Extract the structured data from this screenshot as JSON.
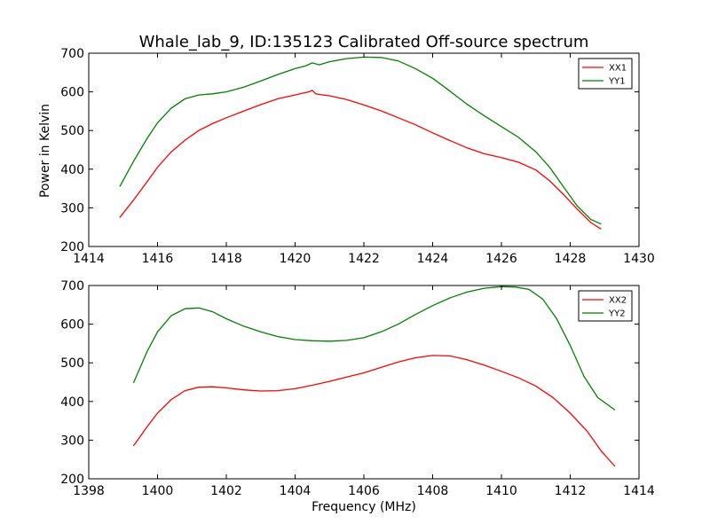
{
  "figure": {
    "title": "Whale_lab_9, ID:135123 Calibrated Off-source spectrum",
    "ylabel": "Power in Kelvin",
    "xlabel": "Frequency (MHz)"
  },
  "chart_data": [
    {
      "type": "line",
      "title": "Whale_lab_9, ID:135123 Calibrated Off-source spectrum",
      "ylabel": "Power in Kelvin",
      "xlabel": "",
      "xlim": [
        1414,
        1430
      ],
      "ylim": [
        200,
        700
      ],
      "xticks": [
        1414,
        1416,
        1418,
        1420,
        1422,
        1424,
        1426,
        1428,
        1430
      ],
      "yticks": [
        200,
        300,
        400,
        500,
        600,
        700
      ],
      "legend": "top-right",
      "series": [
        {
          "name": "XX1",
          "color": "#ff0000",
          "x": [
            1414.9,
            1415.3,
            1415.7,
            1416.0,
            1416.4,
            1416.8,
            1417.2,
            1417.6,
            1418.0,
            1418.5,
            1419.0,
            1419.5,
            1420.0,
            1420.2,
            1420.4,
            1420.5,
            1420.6,
            1420.8,
            1421.0,
            1421.5,
            1422.0,
            1422.5,
            1423.0,
            1423.5,
            1424.0,
            1424.5,
            1425.0,
            1425.5,
            1426.0,
            1426.5,
            1427.0,
            1427.4,
            1427.8,
            1428.2,
            1428.6,
            1428.9
          ],
          "y": [
            275,
            320,
            368,
            405,
            445,
            475,
            500,
            518,
            533,
            550,
            567,
            582,
            592,
            596,
            600,
            604,
            595,
            592,
            590,
            580,
            566,
            551,
            533,
            515,
            494,
            474,
            455,
            440,
            430,
            418,
            398,
            370,
            335,
            297,
            262,
            245
          ]
        },
        {
          "name": "YY1",
          "color": "#008000",
          "x": [
            1414.9,
            1415.3,
            1415.7,
            1416.0,
            1416.4,
            1416.8,
            1417.2,
            1417.6,
            1418.0,
            1418.5,
            1419.0,
            1419.5,
            1420.0,
            1420.3,
            1420.5,
            1420.7,
            1421.0,
            1421.5,
            1422.0,
            1422.5,
            1423.0,
            1423.5,
            1424.0,
            1424.5,
            1425.0,
            1425.5,
            1426.0,
            1426.5,
            1427.0,
            1427.4,
            1427.8,
            1428.2,
            1428.6,
            1428.9
          ],
          "y": [
            355,
            420,
            480,
            520,
            558,
            582,
            592,
            595,
            600,
            612,
            628,
            645,
            660,
            667,
            675,
            670,
            678,
            686,
            690,
            689,
            680,
            660,
            635,
            602,
            568,
            538,
            510,
            482,
            445,
            405,
            355,
            305,
            270,
            258
          ]
        }
      ]
    },
    {
      "type": "line",
      "title": "",
      "ylabel": "",
      "xlabel": "Frequency (MHz)",
      "xlim": [
        1398,
        1414
      ],
      "ylim": [
        200,
        700
      ],
      "xticks": [
        1398,
        1400,
        1402,
        1404,
        1406,
        1408,
        1410,
        1412,
        1414
      ],
      "yticks": [
        200,
        300,
        400,
        500,
        600,
        700
      ],
      "legend": "top-right",
      "series": [
        {
          "name": "XX2",
          "color": "#ff0000",
          "x": [
            1399.3,
            1399.7,
            1400.0,
            1400.4,
            1400.8,
            1401.2,
            1401.6,
            1402.0,
            1402.5,
            1403.0,
            1403.5,
            1404.0,
            1404.5,
            1405.0,
            1405.5,
            1406.0,
            1406.5,
            1407.0,
            1407.5,
            1408.0,
            1408.5,
            1409.0,
            1409.5,
            1410.0,
            1410.5,
            1411.0,
            1411.5,
            1412.0,
            1412.5,
            1412.9,
            1413.3
          ],
          "y": [
            285,
            335,
            370,
            405,
            428,
            437,
            438,
            435,
            430,
            427,
            428,
            433,
            442,
            452,
            463,
            474,
            488,
            502,
            513,
            519,
            518,
            508,
            494,
            478,
            461,
            440,
            410,
            370,
            322,
            272,
            232
          ]
        },
        {
          "name": "YY2",
          "color": "#008000",
          "x": [
            1399.3,
            1399.7,
            1400.0,
            1400.4,
            1400.8,
            1401.2,
            1401.6,
            1402.0,
            1402.5,
            1403.0,
            1403.5,
            1404.0,
            1404.5,
            1405.0,
            1405.5,
            1406.0,
            1406.5,
            1407.0,
            1407.5,
            1408.0,
            1408.5,
            1409.0,
            1409.5,
            1410.0,
            1410.4,
            1410.8,
            1411.2,
            1411.6,
            1412.0,
            1412.4,
            1412.8,
            1413.3
          ],
          "y": [
            448,
            530,
            580,
            622,
            640,
            642,
            632,
            614,
            595,
            580,
            568,
            560,
            557,
            556,
            558,
            565,
            580,
            600,
            625,
            648,
            668,
            683,
            693,
            697,
            696,
            690,
            665,
            615,
            545,
            465,
            410,
            378
          ]
        }
      ]
    }
  ]
}
